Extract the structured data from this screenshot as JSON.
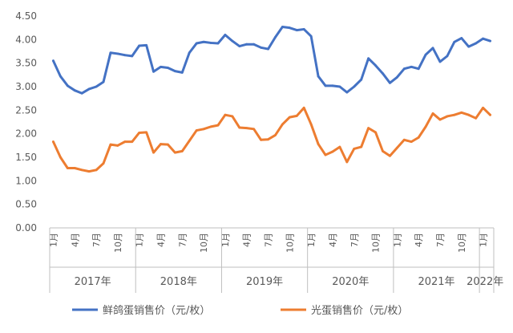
{
  "chart_data": {
    "type": "line",
    "title": "",
    "xlabel": "",
    "ylabel": "",
    "ylim": [
      0,
      4.5
    ],
    "y_ticks": [
      "0.00",
      "0.50",
      "1.00",
      "1.50",
      "2.00",
      "2.50",
      "3.00",
      "3.50",
      "4.00",
      "4.50"
    ],
    "grid": false,
    "legend_position": "bottom",
    "x_month_labels": [
      "1月",
      "4月",
      "7月",
      "10月"
    ],
    "years": [
      "2017年",
      "2018年",
      "2019年",
      "2020年",
      "2021年",
      "2022年"
    ],
    "x": [
      "2017-01",
      "2017-02",
      "2017-03",
      "2017-04",
      "2017-05",
      "2017-06",
      "2017-07",
      "2017-08",
      "2017-09",
      "2017-10",
      "2017-11",
      "2017-12",
      "2018-01",
      "2018-02",
      "2018-03",
      "2018-04",
      "2018-05",
      "2018-06",
      "2018-07",
      "2018-08",
      "2018-09",
      "2018-10",
      "2018-11",
      "2018-12",
      "2019-01",
      "2019-02",
      "2019-03",
      "2019-04",
      "2019-05",
      "2019-06",
      "2019-07",
      "2019-08",
      "2019-09",
      "2019-10",
      "2019-11",
      "2019-12",
      "2020-01",
      "2020-02",
      "2020-03",
      "2020-04",
      "2020-05",
      "2020-06",
      "2020-07",
      "2020-08",
      "2020-09",
      "2020-10",
      "2020-11",
      "2020-12",
      "2021-01",
      "2021-02",
      "2021-03",
      "2021-04",
      "2021-05",
      "2021-06",
      "2021-07",
      "2021-08",
      "2021-09",
      "2021-10",
      "2021-11",
      "2021-12",
      "2022-01",
      "2022-02"
    ],
    "series": [
      {
        "name": "鲜鸽蛋销售价（元/枚）",
        "color": "#4472C4",
        "values": [
          3.55,
          3.22,
          3.02,
          2.92,
          2.86,
          2.95,
          3.0,
          3.1,
          3.72,
          3.7,
          3.67,
          3.65,
          3.87,
          3.88,
          3.32,
          3.42,
          3.4,
          3.33,
          3.3,
          3.72,
          3.92,
          3.95,
          3.93,
          3.92,
          4.1,
          3.97,
          3.86,
          3.9,
          3.9,
          3.83,
          3.8,
          4.05,
          4.27,
          4.25,
          4.2,
          4.22,
          4.07,
          3.22,
          3.02,
          3.02,
          3.0,
          2.88,
          3.0,
          3.15,
          3.6,
          3.45,
          3.28,
          3.08,
          3.2,
          3.38,
          3.42,
          3.38,
          3.68,
          3.82,
          3.53,
          3.65,
          3.95,
          4.03,
          3.85,
          3.92,
          4.02,
          3.97
        ]
      },
      {
        "name": "光蛋销售价（元/枚）",
        "color": "#ED7D31",
        "values": [
          1.83,
          1.5,
          1.27,
          1.27,
          1.23,
          1.2,
          1.23,
          1.37,
          1.77,
          1.75,
          1.83,
          1.83,
          2.02,
          2.03,
          1.6,
          1.78,
          1.77,
          1.6,
          1.63,
          1.85,
          2.07,
          2.1,
          2.15,
          2.18,
          2.4,
          2.37,
          2.13,
          2.12,
          2.1,
          1.87,
          1.88,
          1.97,
          2.2,
          2.35,
          2.38,
          2.55,
          2.2,
          1.78,
          1.55,
          1.62,
          1.72,
          1.4,
          1.68,
          1.72,
          2.12,
          2.03,
          1.63,
          1.53,
          1.7,
          1.87,
          1.83,
          1.92,
          2.15,
          2.43,
          2.3,
          2.37,
          2.4,
          2.45,
          2.4,
          2.33,
          2.55,
          2.4
        ]
      }
    ]
  }
}
